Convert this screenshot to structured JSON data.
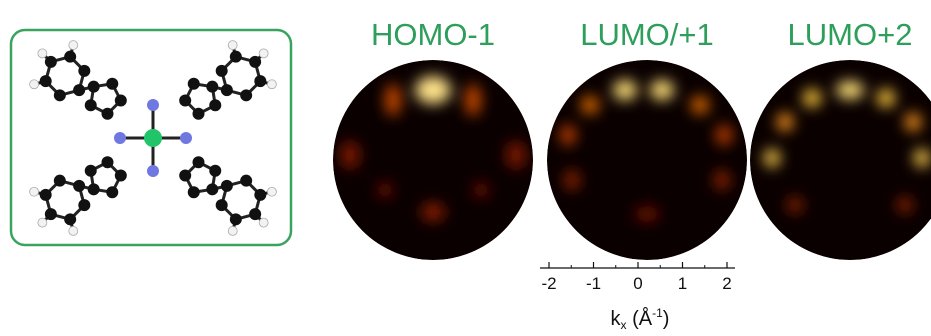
{
  "maps": [
    {
      "label": "HOMO-1"
    },
    {
      "label": "LUMO/+1"
    },
    {
      "label": "LUMO+2"
    }
  ],
  "axis": {
    "ticks": [
      -2,
      -1,
      0,
      1,
      2
    ],
    "label": {
      "main": "k",
      "sub": "x",
      "open": " (Å",
      "sup": "-1",
      "close": ")"
    }
  }
}
